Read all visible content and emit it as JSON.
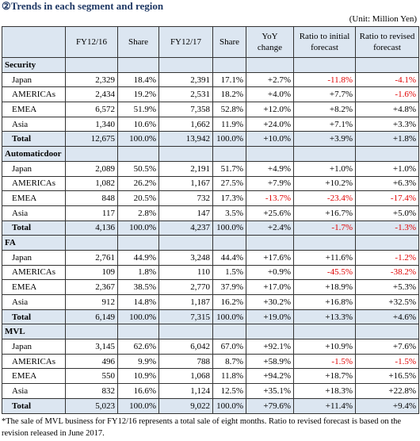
{
  "header": {
    "title": "②Trends in each segment and region",
    "unit": "(Unit: Million Yen)"
  },
  "table": {
    "columns": [
      "FY12/16",
      "Share",
      "FY12/17",
      "Share",
      "YoY change",
      "Ratio to initial forecast",
      "Ratio to revised forecast"
    ],
    "sections": [
      {
        "name": "Security",
        "rows": [
          {
            "label": "Japan",
            "cells": [
              "2,329",
              "18.4%",
              "2,391",
              "17.1%",
              "+2.7%",
              "-11.8%",
              "-4.1%"
            ]
          },
          {
            "label": "AMERICAs",
            "cells": [
              "2,434",
              "19.2%",
              "2,531",
              "18.2%",
              "+4.0%",
              "+7.7%",
              "-1.6%"
            ]
          },
          {
            "label": "EMEA",
            "cells": [
              "6,572",
              "51.9%",
              "7,358",
              "52.8%",
              "+12.0%",
              "+8.2%",
              "+4.8%"
            ]
          },
          {
            "label": "Asia",
            "cells": [
              "1,340",
              "10.6%",
              "1,662",
              "11.9%",
              "+24.0%",
              "+7.1%",
              "+3.3%"
            ]
          },
          {
            "label": "Total",
            "cells": [
              "12,675",
              "100.0%",
              "13,942",
              "100.0%",
              "+10.0%",
              "+3.9%",
              "+1.8%"
            ]
          }
        ]
      },
      {
        "name": "Automaticdoor",
        "rows": [
          {
            "label": "Japan",
            "cells": [
              "2,089",
              "50.5%",
              "2,191",
              "51.7%",
              "+4.9%",
              "+1.0%",
              "+1.0%"
            ]
          },
          {
            "label": "AMERICAs",
            "cells": [
              "1,082",
              "26.2%",
              "1,167",
              "27.5%",
              "+7.9%",
              "+10.2%",
              "+6.3%"
            ]
          },
          {
            "label": "EMEA",
            "cells": [
              "848",
              "20.5%",
              "732",
              "17.3%",
              "-13.7%",
              "-23.4%",
              "-17.4%"
            ]
          },
          {
            "label": "Asia",
            "cells": [
              "117",
              "2.8%",
              "147",
              "3.5%",
              "+25.6%",
              "+16.7%",
              "+5.0%"
            ]
          },
          {
            "label": "Total",
            "cells": [
              "4,136",
              "100.0%",
              "4,237",
              "100.0%",
              "+2.4%",
              "-1.7%",
              "-1.3%"
            ]
          }
        ]
      },
      {
        "name": "FA",
        "rows": [
          {
            "label": "Japan",
            "cells": [
              "2,761",
              "44.9%",
              "3,248",
              "44.4%",
              "+17.6%",
              "+11.6%",
              "-1.2%"
            ]
          },
          {
            "label": "AMERICAs",
            "cells": [
              "109",
              "1.8%",
              "110",
              "1.5%",
              "+0.9%",
              "-45.5%",
              "-38.2%"
            ]
          },
          {
            "label": "EMEA",
            "cells": [
              "2,367",
              "38.5%",
              "2,770",
              "37.9%",
              "+17.0%",
              "+18.9%",
              "+5.3%"
            ]
          },
          {
            "label": "Asia",
            "cells": [
              "912",
              "14.8%",
              "1,187",
              "16.2%",
              "+30.2%",
              "+16.8%",
              "+32.5%"
            ]
          },
          {
            "label": "Total",
            "cells": [
              "6,149",
              "100.0%",
              "7,315",
              "100.0%",
              "+19.0%",
              "+13.3%",
              "+4.6%"
            ]
          }
        ]
      },
      {
        "name": "MVL",
        "rows": [
          {
            "label": "Japan",
            "cells": [
              "3,145",
              "62.6%",
              "6,042",
              "67.0%",
              "+92.1%",
              "+10.9%",
              "+7.6%"
            ]
          },
          {
            "label": "AMERICAs",
            "cells": [
              "496",
              "9.9%",
              "788",
              "8.7%",
              "+58.9%",
              "-1.5%",
              "-1.5%"
            ]
          },
          {
            "label": "EMEA",
            "cells": [
              "550",
              "10.9%",
              "1,068",
              "11.8%",
              "+94.2%",
              "+18.7%",
              "+16.5%"
            ]
          },
          {
            "label": "Asia",
            "cells": [
              "832",
              "16.6%",
              "1,124",
              "12.5%",
              "+35.1%",
              "+18.3%",
              "+22.8%"
            ]
          },
          {
            "label": "Total",
            "cells": [
              "5,023",
              "100.0%",
              "9,022",
              "100.0%",
              "+79.6%",
              "+11.4%",
              "+9.4%"
            ]
          }
        ]
      }
    ]
  },
  "footnote": "*The sale of MVL business for FY12/16 represents a total sale of eight months. Ratio to revised forecast is based on the revision released in June 2017."
}
